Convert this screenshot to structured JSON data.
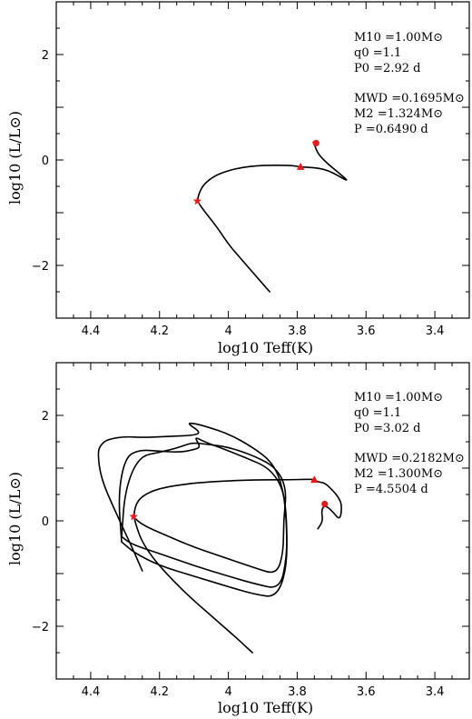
{
  "chart_data": [
    {
      "type": "line",
      "xlabel": "log10 Teff(K)",
      "ylabel": "log10 (L/L⊙)",
      "xlim": [
        4.5,
        3.3
      ],
      "ylim": [
        -3,
        3
      ],
      "x_reversed": true,
      "xticks": [
        "4.4",
        "4.2",
        "4",
        "3.8",
        "3.6",
        "3.4"
      ],
      "yticks": [
        "−2",
        "0",
        "2"
      ],
      "annotations": [
        {
          "text": "M10 =1.00M⊙"
        },
        {
          "text": "q0 =1.1"
        },
        {
          "text": "P0 =2.92 d"
        },
        {
          "text": "MWD =0.1695M⊙"
        },
        {
          "text": "M2 =1.324M⊙"
        },
        {
          "text": "P =0.6490 d"
        }
      ],
      "series": [
        {
          "x": [
            3.88,
            3.92,
            3.96,
            4.0,
            4.03,
            4.06,
            4.08,
            4.09,
            4.085,
            4.07,
            4.04,
            4.0,
            3.96,
            3.92,
            3.88,
            3.84,
            3.81,
            3.79,
            3.77,
            3.74,
            3.71,
            3.68,
            3.66,
            3.655,
            3.68,
            3.71,
            3.735,
            3.745,
            3.75,
            3.755,
            3.745
          ],
          "y": [
            -2.5,
            -2.2,
            -1.9,
            -1.6,
            -1.3,
            -1.05,
            -0.88,
            -0.78,
            -0.62,
            -0.45,
            -0.3,
            -0.2,
            -0.14,
            -0.11,
            -0.1,
            -0.1,
            -0.11,
            -0.13,
            -0.14,
            -0.15,
            -0.2,
            -0.3,
            -0.38,
            -0.38,
            -0.24,
            -0.08,
            0.08,
            0.2,
            0.3,
            0.35,
            0.32
          ]
        }
      ],
      "markers": [
        {
          "x": 4.09,
          "y": -0.78,
          "shape": "star",
          "color": "#e8191a"
        },
        {
          "x": 3.79,
          "y": -0.13,
          "shape": "triangle",
          "color": "#e8191a"
        },
        {
          "x": 3.745,
          "y": 0.32,
          "shape": "circle",
          "color": "#e8191a"
        }
      ]
    },
    {
      "type": "line",
      "xlabel": "log10 Teff(K)",
      "ylabel": "log10 (L/L⊙)",
      "xlim": [
        4.5,
        3.3
      ],
      "ylim": [
        -3,
        3
      ],
      "x_reversed": true,
      "xticks": [
        "4.4",
        "4.2",
        "4",
        "3.8",
        "3.6",
        "3.4"
      ],
      "yticks": [
        "−2",
        "0",
        "2"
      ],
      "annotations": [
        {
          "text": "M10 =1.00M⊙"
        },
        {
          "text": "q0 =1.1"
        },
        {
          "text": "P0 =3.02 d"
        },
        {
          "text": "MWD =0.2182M⊙"
        },
        {
          "text": "M2 =1.300M⊙"
        },
        {
          "text": "P =4.5504 d"
        }
      ],
      "series": [
        {
          "x": [
            3.93,
            3.98,
            4.05,
            4.12,
            4.18,
            4.22,
            4.25,
            4.265,
            4.275,
            4.27,
            4.25,
            4.2,
            4.1,
            4.0,
            3.9,
            3.82,
            3.76,
            3.75,
            3.74,
            3.72,
            3.7,
            3.68,
            3.67,
            3.675,
            3.7,
            3.72,
            3.73,
            3.725,
            3.74
          ],
          "y": [
            -2.5,
            -2.2,
            -1.8,
            -1.4,
            -1.0,
            -0.7,
            -0.4,
            -0.15,
            0.08,
            0.3,
            0.48,
            0.62,
            0.72,
            0.76,
            0.78,
            0.78,
            0.79,
            0.78,
            0.74,
            0.72,
            0.6,
            0.45,
            0.3,
            0.0,
            0.2,
            0.3,
            0.2,
            0.0,
            -0.15
          ]
        },
        {
          "x": [
            4.28,
            4.25,
            4.18,
            4.1,
            4.0,
            3.92,
            3.86,
            3.84,
            3.84,
            3.83,
            3.86,
            3.92,
            4.0,
            4.06,
            4.1,
            4.12,
            4.15,
            4.2,
            4.26,
            4.3,
            4.31
          ],
          "y": [
            0.1,
            -0.08,
            -0.28,
            -0.5,
            -0.72,
            -0.9,
            -1.02,
            -0.6,
            0.0,
            0.6,
            1.0,
            1.22,
            1.4,
            1.45,
            1.48,
            1.45,
            1.38,
            1.3,
            1.22,
            0.6,
            -0.3
          ]
        },
        {
          "x": [
            4.31,
            4.28,
            4.2,
            4.1,
            4.0,
            3.92,
            3.85,
            3.83,
            3.83,
            3.84,
            3.88,
            3.95,
            4.02,
            4.07,
            4.1,
            4.08,
            4.1,
            4.14,
            4.2,
            4.26,
            4.3,
            4.32,
            4.31
          ],
          "y": [
            -0.3,
            -0.45,
            -0.62,
            -0.85,
            -1.05,
            -1.2,
            -1.3,
            -0.7,
            0.0,
            0.6,
            1.0,
            1.2,
            1.38,
            1.5,
            1.6,
            1.4,
            1.35,
            1.3,
            1.32,
            1.35,
            1.2,
            0.5,
            -0.4
          ]
        },
        {
          "x": [
            4.31,
            4.27,
            4.2,
            4.1,
            4.0,
            3.92,
            3.86,
            3.83,
            3.83,
            3.84,
            3.87,
            3.93,
            4.0,
            4.06,
            4.1,
            4.12,
            4.08,
            4.1,
            4.18,
            4.25,
            4.3,
            4.35,
            4.37,
            4.38,
            4.37,
            4.33,
            4.28,
            4.25
          ],
          "y": [
            -0.4,
            -0.62,
            -0.85,
            -1.05,
            -1.25,
            -1.4,
            -1.45,
            -0.9,
            -0.1,
            0.6,
            1.1,
            1.4,
            1.65,
            1.78,
            1.85,
            1.85,
            1.68,
            1.62,
            1.6,
            1.58,
            1.6,
            1.55,
            1.45,
            1.3,
            0.8,
            0.2,
            -0.5,
            -0.95
          ]
        }
      ],
      "markers": [
        {
          "x": 4.275,
          "y": 0.08,
          "shape": "star",
          "color": "#e8191a"
        },
        {
          "x": 3.75,
          "y": 0.78,
          "shape": "triangle",
          "color": "#e8191a"
        },
        {
          "x": 3.72,
          "y": 0.32,
          "shape": "circle",
          "color": "#e8191a"
        }
      ]
    }
  ]
}
